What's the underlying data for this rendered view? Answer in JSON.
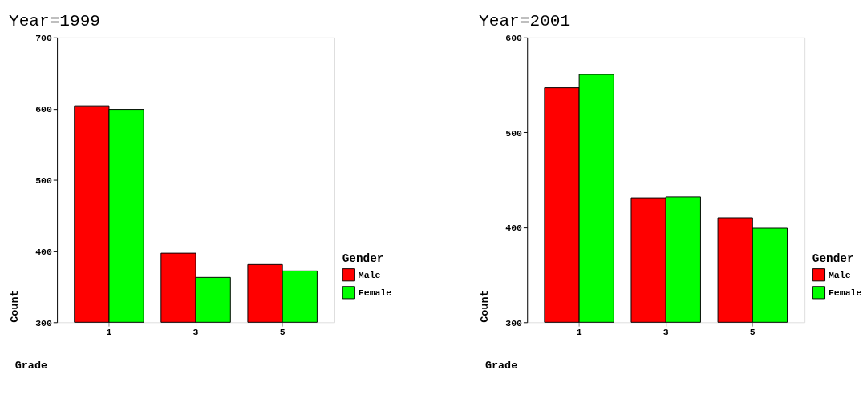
{
  "chart_data": [
    {
      "type": "bar",
      "title": "Year=1999",
      "xlabel": "Grade",
      "ylabel": "Count",
      "legend_title": "Gender",
      "legend": "right",
      "grid": false,
      "categories": [
        "1",
        "3",
        "5"
      ],
      "ylim": [
        300,
        700
      ],
      "yticks": [
        300,
        400,
        500,
        600,
        700
      ],
      "series": [
        {
          "name": "Male",
          "color": "#ff0000",
          "values": [
            604,
            397,
            381
          ]
        },
        {
          "name": "Female",
          "color": "#00ff00",
          "values": [
            599,
            363,
            372
          ]
        }
      ]
    },
    {
      "type": "bar",
      "title": "Year=2001",
      "xlabel": "Grade",
      "ylabel": "Count",
      "legend_title": "Gender",
      "legend": "right",
      "grid": false,
      "categories": [
        "1",
        "3",
        "5"
      ],
      "ylim": [
        300,
        600
      ],
      "yticks": [
        300,
        400,
        500,
        600
      ],
      "series": [
        {
          "name": "Male",
          "color": "#ff0000",
          "values": [
            547,
            431,
            410
          ]
        },
        {
          "name": "Female",
          "color": "#00ff00",
          "values": [
            561,
            432,
            399
          ]
        }
      ]
    }
  ]
}
